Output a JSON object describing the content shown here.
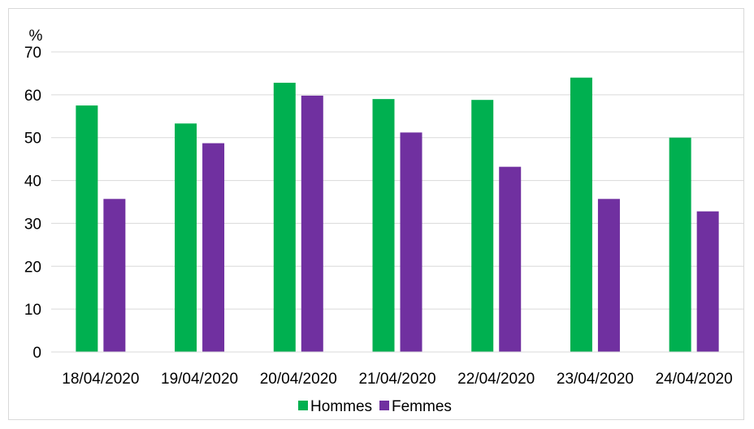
{
  "chart_data": {
    "type": "bar",
    "title": "",
    "xlabel": "",
    "ylabel": "%",
    "ylim": [
      0,
      70
    ],
    "yticks": [
      0,
      10,
      20,
      30,
      40,
      50,
      60,
      70
    ],
    "grid": true,
    "legend_position": "bottom",
    "categories": [
      "18/04/2020",
      "19/04/2020",
      "20/04/2020",
      "21/04/2020",
      "22/04/2020",
      "23/04/2020",
      "24/04/2020"
    ],
    "series": [
      {
        "name": "Hommes",
        "color": "#00b050",
        "values": [
          57.5,
          53.3,
          62.8,
          59.0,
          58.8,
          64.0,
          50.0
        ]
      },
      {
        "name": "Femmes",
        "color": "#7030a0",
        "values": [
          35.7,
          48.7,
          59.8,
          51.2,
          43.2,
          35.7,
          32.8
        ]
      }
    ]
  }
}
